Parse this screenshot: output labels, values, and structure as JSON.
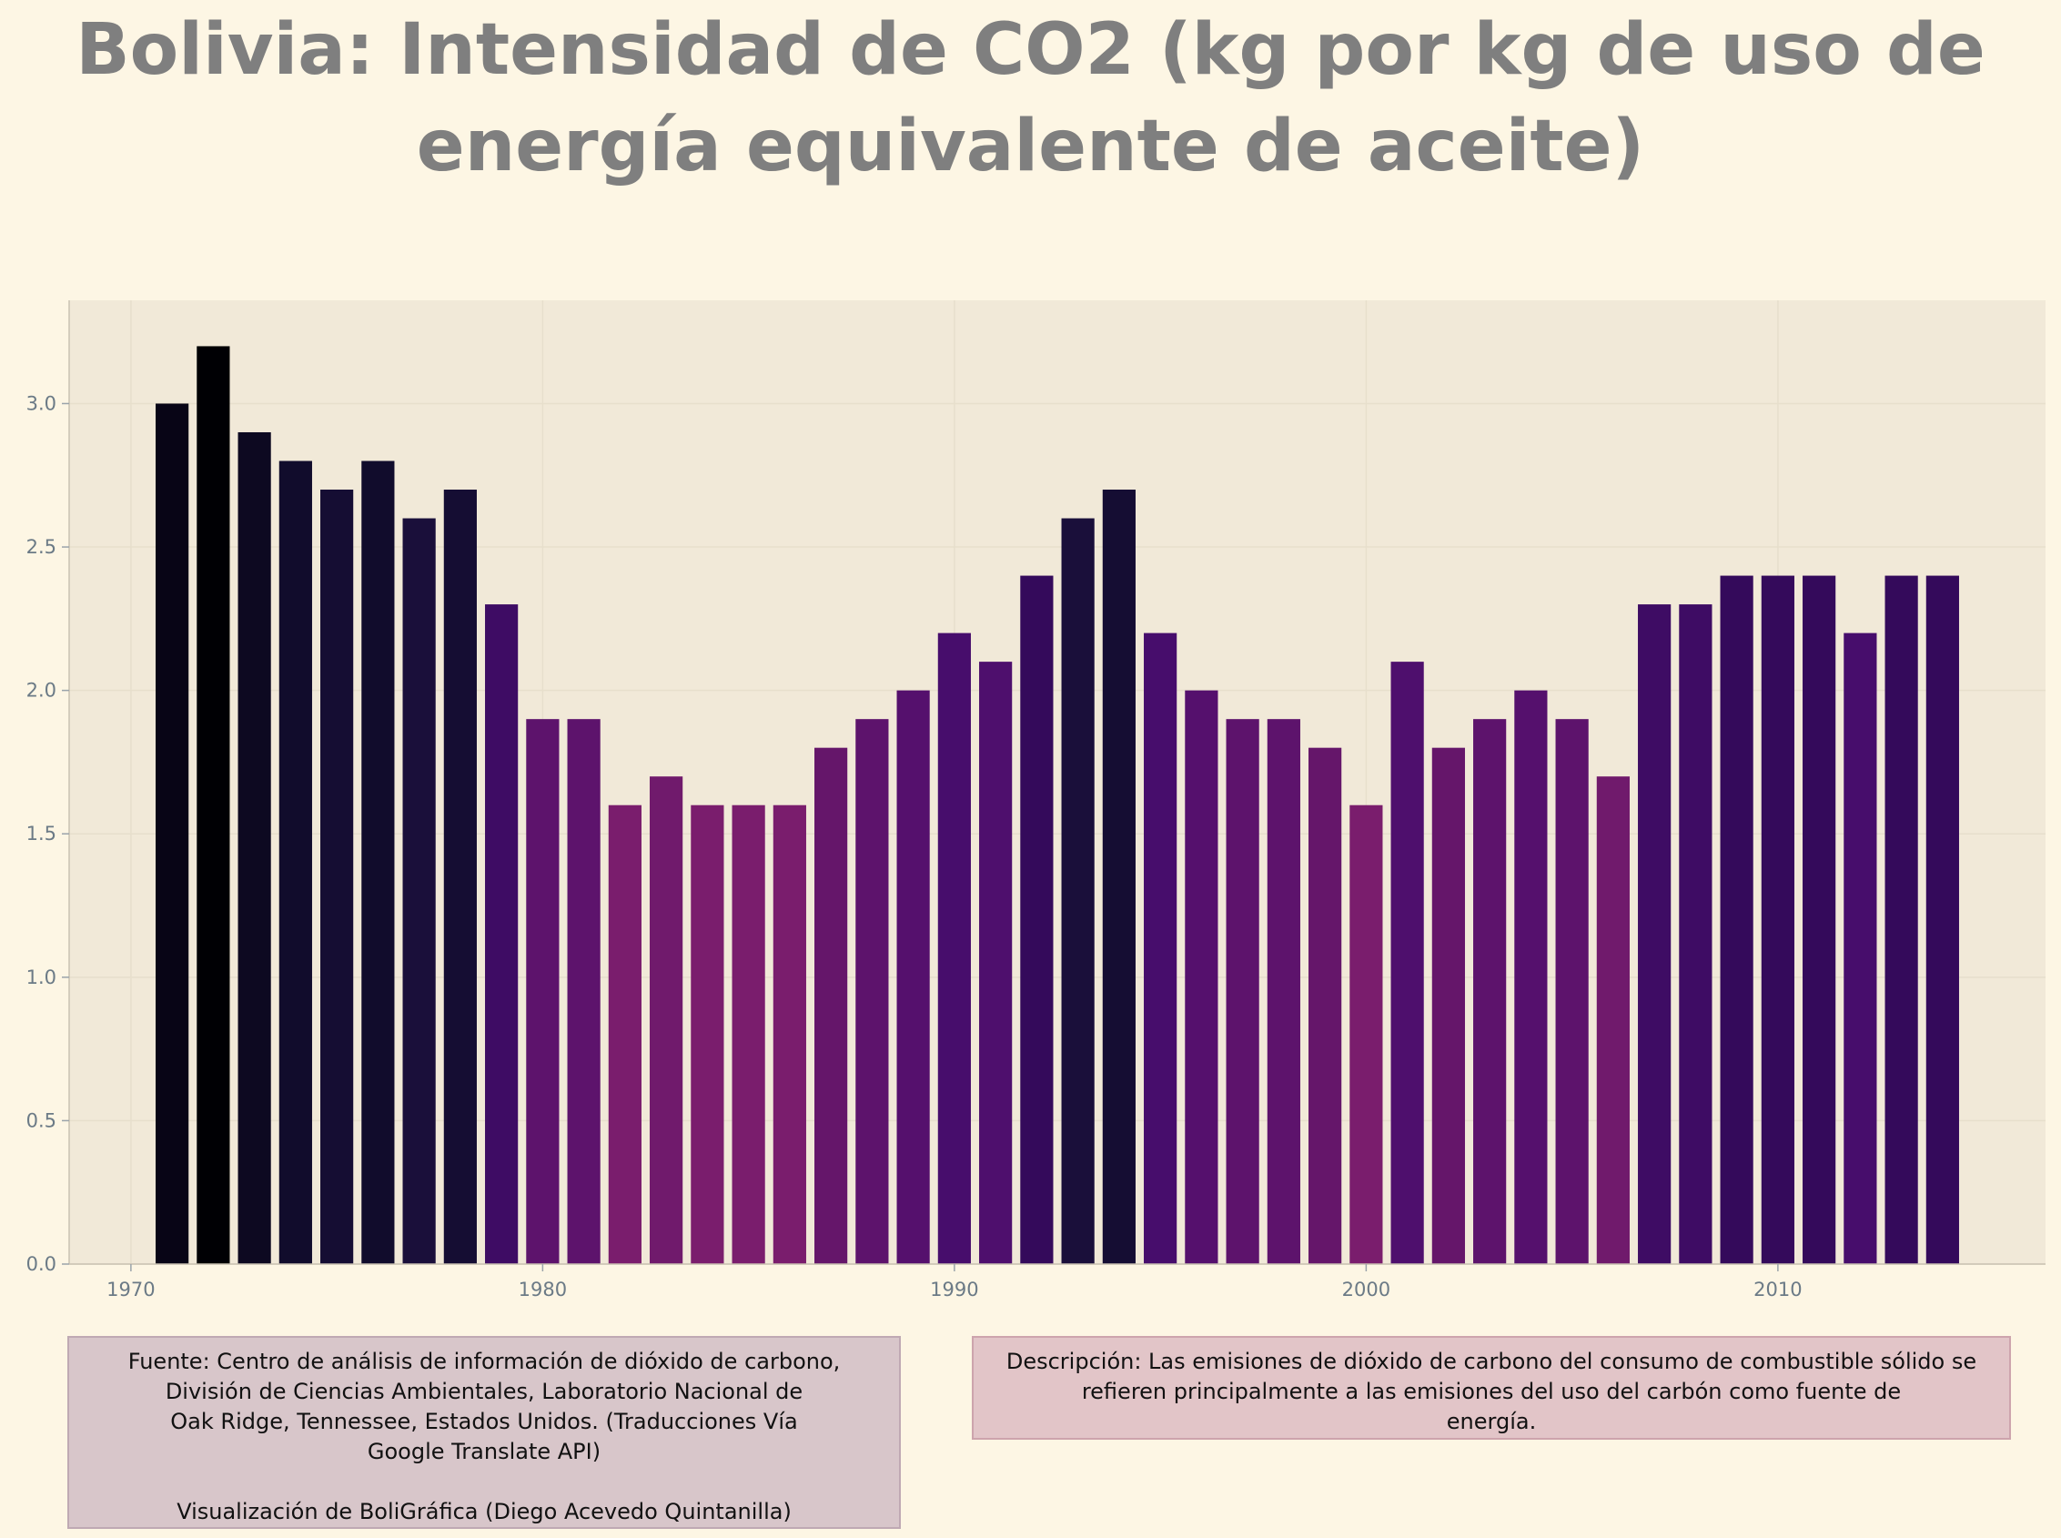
{
  "chart_data": {
    "type": "bar",
    "title": "Bolivia:  Intensidad de CO2 (kg por kg de uso de energía equivalente de aceite)",
    "xlabel": "",
    "ylabel": "",
    "x": [
      1971,
      1972,
      1973,
      1974,
      1975,
      1976,
      1977,
      1978,
      1979,
      1980,
      1981,
      1982,
      1983,
      1984,
      1985,
      1986,
      1987,
      1988,
      1989,
      1990,
      1991,
      1992,
      1993,
      1994,
      1995,
      1996,
      1997,
      1998,
      1999,
      2000,
      2001,
      2002,
      2003,
      2004,
      2005,
      2006,
      2007,
      2008,
      2009,
      2010,
      2011,
      2012,
      2013,
      2014
    ],
    "values": [
      3.0,
      3.2,
      2.9,
      2.8,
      2.7,
      2.8,
      2.6,
      2.7,
      2.3,
      1.9,
      1.9,
      1.6,
      1.7,
      1.6,
      1.6,
      1.6,
      1.8,
      1.9,
      2.0,
      2.2,
      2.1,
      2.4,
      2.6,
      2.7,
      2.2,
      2.0,
      1.9,
      1.9,
      1.8,
      1.6,
      2.1,
      1.8,
      1.9,
      2.0,
      1.9,
      1.7,
      2.3,
      2.3,
      2.4,
      2.4,
      2.4,
      2.2,
      2.4,
      2.4
    ],
    "xlim": [
      1968.5,
      2016.5
    ],
    "ylim": [
      0,
      3.36
    ],
    "x_ticks": [
      1970,
      1980,
      1990,
      2000,
      2010
    ],
    "y_ticks": [
      0.0,
      0.5,
      1.0,
      1.5,
      2.0,
      2.5,
      3.0
    ],
    "x_tick_labels": [
      "1970",
      "1980",
      "1990",
      "2000",
      "2010"
    ],
    "y_tick_labels": [
      "0.0",
      "0.5",
      "1.0",
      "1.5",
      "2.0",
      "2.5",
      "3.0"
    ],
    "grid": true,
    "legend": "none",
    "colormap": "magma (dark for high values, magenta for low values)"
  },
  "notes": {
    "source_lines": [
      "Fuente: Centro de análisis de información de dióxido de carbono,",
      "División de Ciencias Ambientales, Laboratorio Nacional de",
      "Oak Ridge, Tennessee, Estados Unidos. (Traducciones Vía",
      "Google Translate API)"
    ],
    "credit": "Visualización de BoliGráfica (Diego Acevedo Quintanilla)",
    "description_lines": [
      "Descripción: Las emisiones de dióxido de carbono del consumo de combustible sólido se",
      "refieren principalmente a las emisiones del uso del carbón como fuente de",
      "energía."
    ]
  },
  "colors": {
    "page_background": "#fdf6e4",
    "plot_background": "#f1e9d8",
    "title": "#7f7f7f",
    "tick_text": "#6b7a86",
    "source_box": "#d8c6ca",
    "description_box": "#e2c5c8"
  }
}
